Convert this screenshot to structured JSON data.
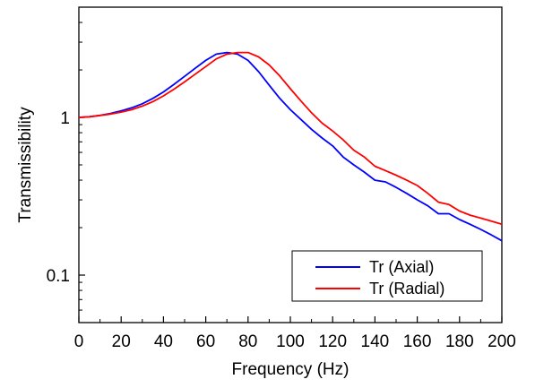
{
  "chart_data": {
    "type": "line",
    "xlabel": "Frequency (Hz)",
    "ylabel": "Transmissibility",
    "xlim": [
      0,
      200
    ],
    "ylim": [
      0.05,
      5
    ],
    "yscale": "log",
    "x_ticks": [
      "0",
      "20",
      "40",
      "60",
      "80",
      "100",
      "120",
      "140",
      "160",
      "180",
      "200"
    ],
    "y_ticks": [
      "0.1",
      "1"
    ],
    "grid": false,
    "legend_position": "bottom-right",
    "series": [
      {
        "name": "Tr (Axial)",
        "color": "#0000ff",
        "x": [
          0,
          5,
          10,
          15,
          20,
          25,
          30,
          35,
          40,
          45,
          50,
          55,
          60,
          65,
          70,
          75,
          80,
          85,
          90,
          95,
          100,
          105,
          110,
          115,
          120,
          125,
          130,
          135,
          140,
          145,
          150,
          155,
          160,
          165,
          170,
          175,
          180,
          185,
          190,
          195,
          200
        ],
        "y": [
          1.0,
          1.01,
          1.03,
          1.06,
          1.1,
          1.15,
          1.22,
          1.32,
          1.45,
          1.62,
          1.82,
          2.05,
          2.3,
          2.52,
          2.58,
          2.52,
          2.3,
          1.95,
          1.6,
          1.32,
          1.12,
          0.97,
          0.84,
          0.74,
          0.66,
          0.56,
          0.5,
          0.45,
          0.4,
          0.39,
          0.36,
          0.33,
          0.3,
          0.275,
          0.245,
          0.245,
          0.225,
          0.21,
          0.195,
          0.18,
          0.165
        ]
      },
      {
        "name": "Tr (Radial)",
        "color": "#ff0000",
        "x": [
          0,
          5,
          10,
          15,
          20,
          25,
          30,
          35,
          40,
          45,
          50,
          55,
          60,
          65,
          70,
          75,
          80,
          85,
          90,
          95,
          100,
          105,
          110,
          115,
          120,
          125,
          130,
          135,
          140,
          145,
          150,
          155,
          160,
          165,
          170,
          175,
          180,
          185,
          190,
          195,
          200
        ],
        "y": [
          1.0,
          1.01,
          1.03,
          1.05,
          1.08,
          1.12,
          1.18,
          1.26,
          1.37,
          1.51,
          1.68,
          1.88,
          2.1,
          2.35,
          2.52,
          2.58,
          2.58,
          2.42,
          2.15,
          1.83,
          1.52,
          1.27,
          1.07,
          0.92,
          0.82,
          0.72,
          0.62,
          0.56,
          0.49,
          0.46,
          0.43,
          0.4,
          0.37,
          0.33,
          0.29,
          0.28,
          0.255,
          0.24,
          0.23,
          0.22,
          0.21
        ]
      }
    ]
  }
}
